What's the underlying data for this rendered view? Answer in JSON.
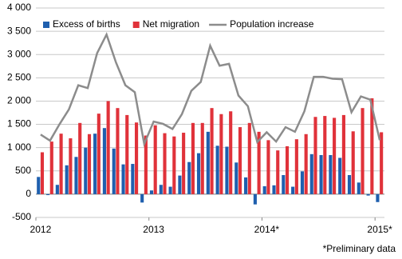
{
  "chart_data": {
    "type": "bar",
    "categories": [
      "2012",
      null,
      null,
      null,
      null,
      null,
      null,
      null,
      null,
      null,
      null,
      null,
      "2013",
      null,
      null,
      null,
      null,
      null,
      null,
      null,
      null,
      null,
      null,
      null,
      "2014*",
      null,
      null,
      null,
      null,
      null,
      null,
      null,
      null,
      null,
      null,
      null,
      "2015*"
    ],
    "series": [
      {
        "name": "Excess of births",
        "color": "#1f5fae",
        "type": "bar",
        "values": [
          370,
          -20,
          200,
          620,
          800,
          1000,
          1300,
          1420,
          980,
          640,
          650,
          -180,
          80,
          200,
          160,
          400,
          690,
          880,
          1340,
          1040,
          1020,
          680,
          360,
          -220,
          170,
          190,
          410,
          160,
          490,
          860,
          840,
          840,
          780,
          410,
          250,
          -30,
          -170
        ]
      },
      {
        "name": "Net migration",
        "color": "#e0323a",
        "type": "bar",
        "values": [
          900,
          1130,
          1300,
          1200,
          1530,
          1290,
          1730,
          2000,
          1850,
          1700,
          1540,
          1260,
          1480,
          1310,
          1240,
          1320,
          1530,
          1530,
          1850,
          1720,
          1780,
          1440,
          1530,
          1340,
          1160,
          940,
          1030,
          1180,
          1290,
          1660,
          1680,
          1640,
          1700,
          1350,
          1850,
          2060,
          1330
        ]
      },
      {
        "name": "Population increase",
        "color": "#8c8c8c",
        "type": "line",
        "values": [
          1280,
          1150,
          1500,
          1820,
          2340,
          2280,
          3030,
          3430,
          2830,
          2340,
          2190,
          1080,
          1560,
          1510,
          1400,
          1720,
          2220,
          2410,
          3190,
          2760,
          2800,
          2120,
          1890,
          1120,
          1330,
          1130,
          1440,
          1340,
          1780,
          2520,
          2520,
          2480,
          2470,
          1760,
          2100,
          2030,
          1160
        ]
      }
    ],
    "ylim": [
      -500,
      4000
    ],
    "yticks": [
      -500,
      0,
      500,
      {
        "value": 1000,
        "label": "1 000"
      },
      {
        "value": 1500,
        "label": "1 500"
      },
      {
        "value": 2000,
        "label": "2 000"
      },
      {
        "value": 2500,
        "label": "2 500"
      },
      {
        "value": 3000,
        "label": "3 000"
      },
      {
        "value": 3500,
        "label": "3 500"
      },
      {
        "value": 4000,
        "label": "4 000"
      }
    ],
    "grid": true,
    "legend": "top-left",
    "footnote": "*Preliminary data"
  }
}
